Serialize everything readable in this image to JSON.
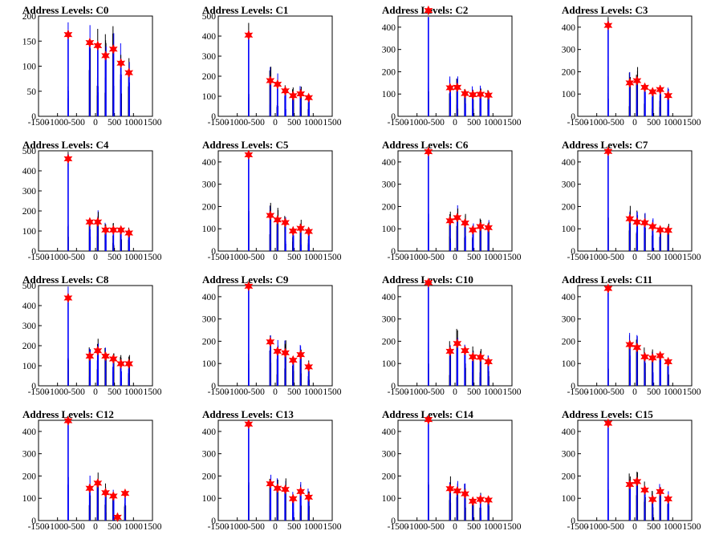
{
  "colors": {
    "histogram": "#0000ff",
    "peak_marker": "#ff0000",
    "axes": "#000000"
  },
  "chart_data": [
    {
      "type": "histogram",
      "title": "Address Levels: C0",
      "xlim": [
        -1500,
        1500
      ],
      "ylim": [
        0,
        200
      ],
      "xticks": [
        -1500,
        -1000,
        -500,
        0,
        500,
        1000,
        1500
      ],
      "yticks": [
        0,
        50,
        100,
        150,
        200
      ],
      "peaks": [
        [
          -720,
          163
        ],
        [
          -150,
          147
        ],
        [
          60,
          141
        ],
        [
          265,
          121
        ],
        [
          470,
          134
        ],
        [
          670,
          106
        ],
        [
          880,
          87
        ]
      ]
    },
    {
      "type": "histogram",
      "title": "Address Levels: C1",
      "xlim": [
        -1500,
        1500
      ],
      "ylim": [
        0,
        500
      ],
      "xticks": [
        -1500,
        -1000,
        -500,
        0,
        500,
        1000,
        1500
      ],
      "yticks": [
        0,
        100,
        200,
        300,
        400,
        500
      ],
      "peaks": [
        [
          -700,
          405
        ],
        [
          -130,
          178
        ],
        [
          60,
          160
        ],
        [
          265,
          127
        ],
        [
          470,
          103
        ],
        [
          670,
          112
        ],
        [
          880,
          93
        ]
      ]
    },
    {
      "type": "histogram",
      "title": "Address Levels: C2",
      "xlim": [
        -1500,
        1500
      ],
      "ylim": [
        0,
        450
      ],
      "xticks": [
        -1500,
        -1000,
        -500,
        0,
        500,
        1000,
        1500
      ],
      "yticks": [
        0,
        100,
        200,
        300,
        400
      ],
      "peaks": [
        [
          -700,
          475
        ],
        [
          -130,
          128
        ],
        [
          60,
          130
        ],
        [
          265,
          102
        ],
        [
          470,
          97
        ],
        [
          670,
          99
        ],
        [
          880,
          95
        ]
      ]
    },
    {
      "type": "histogram",
      "title": "Address Levels: C3",
      "xlim": [
        -1500,
        1500
      ],
      "ylim": [
        0,
        450
      ],
      "xticks": [
        -1500,
        -1000,
        -500,
        0,
        500,
        1000,
        1500
      ],
      "yticks": [
        0,
        100,
        200,
        300,
        400
      ],
      "peaks": [
        [
          -700,
          408
        ],
        [
          -130,
          150
        ],
        [
          60,
          160
        ],
        [
          265,
          130
        ],
        [
          470,
          110
        ],
        [
          670,
          120
        ],
        [
          880,
          93
        ]
      ]
    },
    {
      "type": "histogram",
      "title": "Address Levels: C4",
      "xlim": [
        -1500,
        1500
      ],
      "ylim": [
        0,
        500
      ],
      "xticks": [
        -1500,
        -1000,
        -500,
        0,
        500,
        1000,
        1500
      ],
      "yticks": [
        0,
        100,
        200,
        300,
        400,
        500
      ],
      "peaks": [
        [
          -720,
          460
        ],
        [
          -150,
          145
        ],
        [
          60,
          145
        ],
        [
          265,
          105
        ],
        [
          470,
          105
        ],
        [
          670,
          105
        ],
        [
          880,
          90
        ]
      ]
    },
    {
      "type": "histogram",
      "title": "Address Levels: C5",
      "xlim": [
        -1500,
        1500
      ],
      "ylim": [
        0,
        450
      ],
      "xticks": [
        -1500,
        -1000,
        -500,
        0,
        500,
        1000,
        1500
      ],
      "yticks": [
        0,
        100,
        200,
        300,
        400
      ],
      "peaks": [
        [
          -700,
          432
        ],
        [
          -130,
          160
        ],
        [
          60,
          140
        ],
        [
          265,
          128
        ],
        [
          470,
          90
        ],
        [
          670,
          102
        ],
        [
          880,
          88
        ]
      ]
    },
    {
      "type": "histogram",
      "title": "Address Levels: C6",
      "xlim": [
        -1500,
        1500
      ],
      "ylim": [
        0,
        450
      ],
      "xticks": [
        -1500,
        -1000,
        -500,
        0,
        500,
        1000,
        1500
      ],
      "yticks": [
        0,
        100,
        200,
        300,
        400
      ],
      "peaks": [
        [
          -700,
          446
        ],
        [
          -130,
          136
        ],
        [
          60,
          150
        ],
        [
          265,
          126
        ],
        [
          470,
          95
        ],
        [
          670,
          110
        ],
        [
          880,
          105
        ]
      ]
    },
    {
      "type": "histogram",
      "title": "Address Levels: C7",
      "xlim": [
        -1500,
        1500
      ],
      "ylim": [
        0,
        450
      ],
      "xticks": [
        -1500,
        -1000,
        -500,
        0,
        500,
        1000,
        1500
      ],
      "yticks": [
        0,
        100,
        200,
        300,
        400
      ],
      "peaks": [
        [
          -700,
          447
        ],
        [
          -130,
          145
        ],
        [
          60,
          130
        ],
        [
          265,
          127
        ],
        [
          470,
          110
        ],
        [
          670,
          95
        ],
        [
          880,
          93
        ]
      ]
    },
    {
      "type": "histogram",
      "title": "Address Levels: C8",
      "xlim": [
        -1500,
        1500
      ],
      "ylim": [
        0,
        500
      ],
      "xticks": [
        -1500,
        -1000,
        -500,
        0,
        500,
        1000,
        1500
      ],
      "yticks": [
        0,
        100,
        200,
        300,
        400,
        500
      ],
      "peaks": [
        [
          -720,
          438
        ],
        [
          -150,
          148
        ],
        [
          60,
          175
        ],
        [
          265,
          148
        ],
        [
          470,
          134
        ],
        [
          670,
          110
        ],
        [
          880,
          110
        ]
      ]
    },
    {
      "type": "histogram",
      "title": "Address Levels: C9",
      "xlim": [
        -1500,
        1500
      ],
      "ylim": [
        0,
        450
      ],
      "xticks": [
        -1500,
        -1000,
        -500,
        0,
        500,
        1000,
        1500
      ],
      "yticks": [
        0,
        100,
        200,
        300,
        400
      ],
      "peaks": [
        [
          -700,
          447
        ],
        [
          -130,
          197
        ],
        [
          60,
          155
        ],
        [
          265,
          148
        ],
        [
          470,
          115
        ],
        [
          670,
          140
        ],
        [
          880,
          85
        ]
      ]
    },
    {
      "type": "histogram",
      "title": "Address Levels: C10",
      "xlim": [
        -1500,
        1500
      ],
      "ylim": [
        0,
        450
      ],
      "xticks": [
        -1500,
        -1000,
        -500,
        0,
        500,
        1000,
        1500
      ],
      "yticks": [
        0,
        100,
        200,
        300,
        400
      ],
      "peaks": [
        [
          -700,
          463
        ],
        [
          -130,
          155
        ],
        [
          60,
          190
        ],
        [
          265,
          158
        ],
        [
          470,
          130
        ],
        [
          670,
          128
        ],
        [
          880,
          108
        ]
      ]
    },
    {
      "type": "histogram",
      "title": "Address Levels: C11",
      "xlim": [
        -1500,
        1500
      ],
      "ylim": [
        0,
        450
      ],
      "xticks": [
        -1500,
        -1000,
        -500,
        0,
        500,
        1000,
        1500
      ],
      "yticks": [
        0,
        100,
        200,
        300,
        400
      ],
      "peaks": [
        [
          -700,
          437
        ],
        [
          -130,
          185
        ],
        [
          60,
          172
        ],
        [
          265,
          130
        ],
        [
          470,
          125
        ],
        [
          670,
          135
        ],
        [
          880,
          108
        ]
      ]
    },
    {
      "type": "histogram",
      "title": "Address Levels: C12",
      "xlim": [
        -1500,
        1500
      ],
      "ylim": [
        0,
        450
      ],
      "xticks": [
        -1500,
        -1000,
        -500,
        0,
        500,
        1000,
        1500
      ],
      "yticks": [
        0,
        100,
        200,
        300,
        400
      ],
      "peaks": [
        [
          -720,
          448
        ],
        [
          -150,
          145
        ],
        [
          60,
          168
        ],
        [
          265,
          125
        ],
        [
          470,
          110
        ],
        [
          580,
          15
        ],
        [
          780,
          122
        ]
      ]
    },
    {
      "type": "histogram",
      "title": "Address Levels: C13",
      "xlim": [
        -1500,
        1500
      ],
      "ylim": [
        0,
        450
      ],
      "xticks": [
        -1500,
        -1000,
        -500,
        0,
        500,
        1000,
        1500
      ],
      "yticks": [
        0,
        100,
        200,
        300,
        400
      ],
      "peaks": [
        [
          -700,
          433
        ],
        [
          -130,
          165
        ],
        [
          60,
          145
        ],
        [
          265,
          140
        ],
        [
          470,
          98
        ],
        [
          670,
          130
        ],
        [
          880,
          105
        ]
      ]
    },
    {
      "type": "histogram",
      "title": "Address Levels: C14",
      "xlim": [
        -1500,
        1500
      ],
      "ylim": [
        0,
        450
      ],
      "xticks": [
        -1500,
        -1000,
        -500,
        0,
        500,
        1000,
        1500
      ],
      "yticks": [
        0,
        100,
        200,
        300,
        400
      ],
      "peaks": [
        [
          -700,
          453
        ],
        [
          -130,
          143
        ],
        [
          60,
          133
        ],
        [
          265,
          120
        ],
        [
          470,
          87
        ],
        [
          670,
          95
        ],
        [
          880,
          92
        ]
      ]
    },
    {
      "type": "histogram",
      "title": "Address Levels: C15",
      "xlim": [
        -1500,
        1500
      ],
      "ylim": [
        0,
        450
      ],
      "xticks": [
        -1500,
        -1000,
        -500,
        0,
        500,
        1000,
        1500
      ],
      "yticks": [
        0,
        100,
        200,
        300,
        400
      ],
      "peaks": [
        [
          -700,
          437
        ],
        [
          -130,
          162
        ],
        [
          60,
          175
        ],
        [
          265,
          137
        ],
        [
          470,
          95
        ],
        [
          670,
          130
        ],
        [
          880,
          97
        ]
      ]
    }
  ]
}
